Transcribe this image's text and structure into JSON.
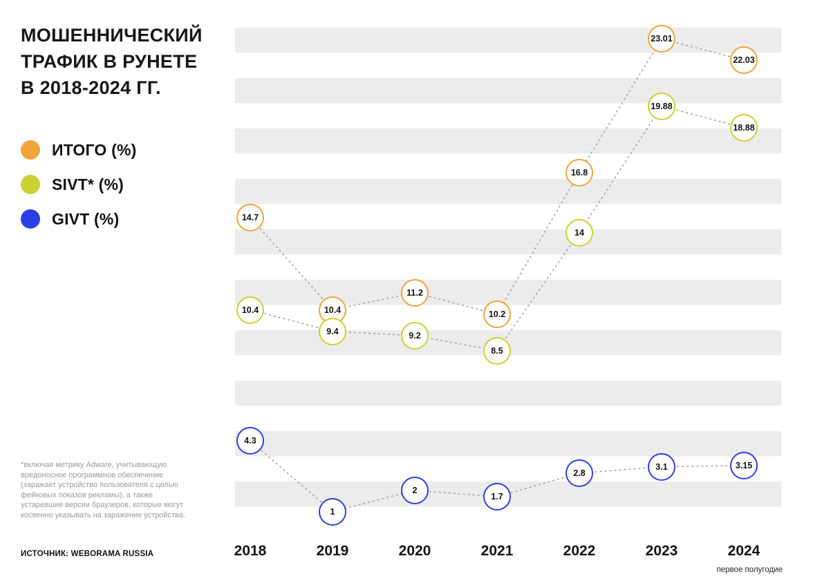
{
  "title": {
    "line1": "МОШЕННИЧЕСКИЙ",
    "line2": "ТРАФИК В РУНЕТЕ",
    "line3": "В 2018-2024 ГГ."
  },
  "footnote": "*включая метрику Adware, учитывающую вредоносное программное обеспечение (заражает устройство пользователя с целью фейковых показов рекламы), а также устаревшие версии браузеров,  которые могут косвенно указывать на заражение устройства.",
  "source": "ИСТОЧНИК: WEBORAMA RUSSIA",
  "chart_data": {
    "type": "line",
    "title": "МОШЕННИЧЕСКИЙ ТРАФИК В РУНЕТЕ В 2018-2024 ГГ.",
    "categories": [
      "2018",
      "2019",
      "2020",
      "2021",
      "2022",
      "2023",
      "2024"
    ],
    "x_sub_label": "первое полугодие",
    "series": [
      {
        "name": "ИТОГО (%)",
        "color": "#F2A43C",
        "values": [
          14.7,
          10.4,
          11.2,
          10.2,
          16.8,
          23.01,
          22.03
        ],
        "labels": [
          "14.7",
          "10.4",
          "11.2",
          "10.2",
          "16.8",
          "23.01",
          "22.03"
        ]
      },
      {
        "name": "SIVT* (%)",
        "color": "#C9D231",
        "values": [
          10.4,
          9.4,
          9.2,
          8.5,
          14,
          19.88,
          18.88
        ],
        "labels": [
          "10.4",
          "9.4",
          "9.2",
          "8.5",
          "14",
          "19.88",
          "18.88"
        ]
      },
      {
        "name": "GIVT (%)",
        "color": "#2B3FE6",
        "values": [
          4.3,
          1,
          2,
          1.7,
          2.8,
          3.1,
          3.15
        ],
        "labels": [
          "4.3",
          "1",
          "2",
          "1.7",
          "2.8",
          "3.1",
          "3.15"
        ]
      }
    ],
    "xlabel": "",
    "ylabel": "",
    "ylim": [
      0,
      24
    ],
    "grid": "horizontal-stripes",
    "legend_position": "left",
    "point_style": "value label inside white circle with colored ring, dashed gray connectors"
  },
  "colors": {
    "background": "#FFFFFF",
    "stripe": "#ECECEC",
    "connector": "#999999",
    "text": "#111111",
    "footnote_text": "#9A9A9A"
  }
}
